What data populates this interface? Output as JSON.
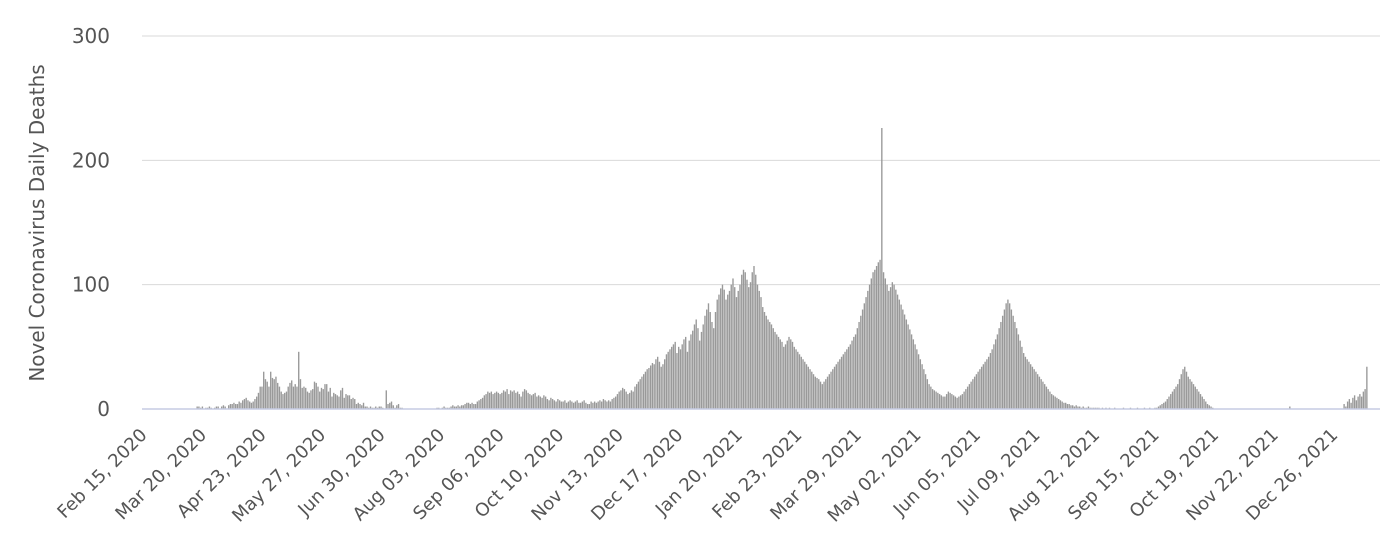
{
  "chart_data": {
    "type": "bar",
    "title": "",
    "ylabel": "Novel Coronavirus Daily Deaths",
    "xlabel": "",
    "ylim": [
      0,
      300
    ],
    "yticks": [
      0,
      100,
      200,
      300
    ],
    "grid": true,
    "bar_color": "#999999",
    "axis_line_color": "#c5cbe3",
    "start_date": "2020-02-15",
    "end_date": "2022-01-21",
    "xticks": [
      "Feb 15, 2020",
      "Mar 20, 2020",
      "Apr 23, 2020",
      "May 27, 2020",
      "Jun 30, 2020",
      "Aug 03, 2020",
      "Sep 06, 2020",
      "Oct 10, 2020",
      "Nov 13, 2020",
      "Dec 17, 2020",
      "Jan 20, 2021",
      "Feb 23, 2021",
      "Mar 29, 2021",
      "May 02, 2021",
      "Jun 05, 2021",
      "Jul 09, 2021",
      "Aug 12, 2021",
      "Sep 15, 2021",
      "Oct 19, 2021",
      "Nov 22, 2021",
      "Dec 26, 2021"
    ],
    "series": [
      {
        "values": [
          0,
          0,
          0,
          0,
          0,
          0,
          0,
          0,
          0,
          0,
          0,
          0,
          0,
          0,
          0,
          0,
          0,
          0,
          0,
          0,
          0,
          0,
          0,
          0,
          0,
          0,
          0,
          0,
          0,
          0,
          0,
          2,
          2,
          1,
          2,
          0,
          1,
          1,
          2,
          1,
          0,
          1,
          2,
          2,
          0,
          2,
          3,
          2,
          0,
          3,
          4,
          4,
          5,
          4,
          4,
          6,
          5,
          7,
          8,
          9,
          7,
          6,
          5,
          6,
          8,
          10,
          13,
          18,
          18,
          30,
          24,
          22,
          18,
          30,
          25,
          24,
          26,
          21,
          18,
          14,
          12,
          13,
          14,
          18,
          21,
          23,
          18,
          20,
          18,
          46,
          24,
          17,
          18,
          17,
          14,
          13,
          15,
          16,
          22,
          21,
          18,
          14,
          17,
          16,
          20,
          20,
          14,
          17,
          10,
          13,
          12,
          11,
          10,
          15,
          17,
          9,
          12,
          11,
          11,
          8,
          9,
          8,
          4,
          5,
          4,
          3,
          5,
          2,
          2,
          1,
          2,
          1,
          1,
          2,
          1,
          2,
          2,
          1,
          0,
          15,
          4,
          5,
          6,
          3,
          1,
          3,
          4,
          1,
          1,
          0,
          0,
          0,
          0,
          0,
          0,
          0,
          0,
          0,
          0,
          0,
          0,
          0,
          0,
          0,
          0,
          0,
          0,
          0,
          1,
          1,
          0,
          1,
          2,
          1,
          1,
          1,
          2,
          3,
          2,
          2,
          3,
          2,
          3,
          3,
          4,
          5,
          5,
          4,
          5,
          4,
          4,
          6,
          7,
          8,
          9,
          11,
          12,
          14,
          13,
          14,
          12,
          13,
          14,
          13,
          12,
          13,
          15,
          14,
          16,
          12,
          15,
          14,
          15,
          13,
          14,
          12,
          10,
          14,
          16,
          15,
          13,
          12,
          11,
          12,
          13,
          10,
          11,
          10,
          9,
          11,
          10,
          8,
          7,
          9,
          8,
          7,
          6,
          8,
          7,
          6,
          6,
          7,
          5,
          6,
          7,
          6,
          5,
          6,
          7,
          5,
          5,
          6,
          7,
          5,
          4,
          4,
          6,
          5,
          6,
          5,
          6,
          7,
          6,
          8,
          7,
          6,
          7,
          6,
          8,
          9,
          10,
          12,
          14,
          15,
          17,
          16,
          14,
          12,
          13,
          15,
          14,
          18,
          20,
          22,
          24,
          26,
          28,
          30,
          32,
          33,
          35,
          37,
          36,
          40,
          42,
          38,
          34,
          36,
          40,
          44,
          46,
          48,
          50,
          52,
          54,
          45,
          50,
          48,
          52,
          56,
          58,
          46,
          55,
          60,
          63,
          68,
          72,
          65,
          55,
          62,
          68,
          75,
          80,
          85,
          78,
          70,
          65,
          78,
          88,
          92,
          97,
          100,
          96,
          88,
          92,
          95,
          100,
          105,
          98,
          90,
          95,
          100,
          108,
          112,
          110,
          104,
          98,
          102,
          110,
          115,
          108,
          100,
          95,
          90,
          82,
          78,
          75,
          72,
          70,
          68,
          65,
          62,
          60,
          58,
          56,
          54,
          50,
          52,
          55,
          58,
          56,
          54,
          50,
          48,
          46,
          44,
          42,
          40,
          38,
          36,
          34,
          32,
          30,
          28,
          26,
          25,
          24,
          22,
          20,
          22,
          24,
          26,
          28,
          30,
          32,
          34,
          36,
          38,
          40,
          42,
          44,
          46,
          48,
          50,
          52,
          55,
          58,
          60,
          65,
          70,
          75,
          80,
          85,
          90,
          95,
          100,
          105,
          110,
          112,
          115,
          118,
          120,
          226,
          110,
          105,
          100,
          95,
          98,
          102,
          100,
          96,
          92,
          88,
          84,
          80,
          76,
          72,
          68,
          64,
          60,
          56,
          52,
          48,
          44,
          40,
          36,
          32,
          28,
          24,
          20,
          18,
          16,
          15,
          14,
          13,
          12,
          11,
          10,
          10,
          12,
          14,
          13,
          12,
          11,
          10,
          9,
          10,
          11,
          12,
          14,
          16,
          18,
          20,
          22,
          24,
          26,
          28,
          30,
          32,
          34,
          36,
          38,
          40,
          42,
          45,
          48,
          52,
          56,
          60,
          65,
          70,
          75,
          80,
          85,
          88,
          85,
          80,
          75,
          70,
          65,
          60,
          55,
          50,
          45,
          42,
          40,
          38,
          36,
          34,
          32,
          30,
          28,
          26,
          24,
          22,
          20,
          18,
          16,
          14,
          12,
          11,
          10,
          9,
          8,
          7,
          6,
          5,
          5,
          4,
          4,
          3,
          3,
          2,
          3,
          2,
          2,
          1,
          2,
          1,
          1,
          2,
          1,
          1,
          1,
          1,
          1,
          1,
          0,
          1,
          0,
          1,
          0,
          1,
          0,
          0,
          1,
          0,
          0,
          0,
          0,
          1,
          0,
          0,
          0,
          1,
          0,
          0,
          0,
          1,
          0,
          0,
          0,
          1,
          0,
          0,
          1,
          0,
          0,
          1,
          1,
          2,
          3,
          4,
          5,
          6,
          8,
          10,
          12,
          14,
          16,
          18,
          20,
          24,
          28,
          32,
          34,
          30,
          26,
          24,
          22,
          20,
          18,
          16,
          14,
          12,
          10,
          8,
          6,
          4,
          3,
          2,
          1,
          0,
          0,
          0,
          0,
          0,
          0,
          0,
          0,
          0,
          0,
          0,
          0,
          0,
          0,
          0,
          0,
          0,
          0,
          0,
          0,
          0,
          0,
          0,
          0,
          0,
          0,
          0,
          0,
          0,
          0,
          0,
          0,
          0,
          0,
          0,
          0,
          0,
          0,
          0,
          0,
          0,
          0,
          0,
          2,
          0,
          0,
          0,
          0,
          0,
          0,
          0,
          0,
          0,
          0,
          0,
          0,
          0,
          0,
          0,
          0,
          0,
          0,
          0,
          0,
          0,
          0,
          0,
          0,
          0,
          0,
          0,
          0,
          0,
          0,
          4,
          2,
          6,
          8,
          5,
          9,
          11,
          7,
          10,
          12,
          10,
          14,
          16,
          34
        ]
      }
    ]
  }
}
